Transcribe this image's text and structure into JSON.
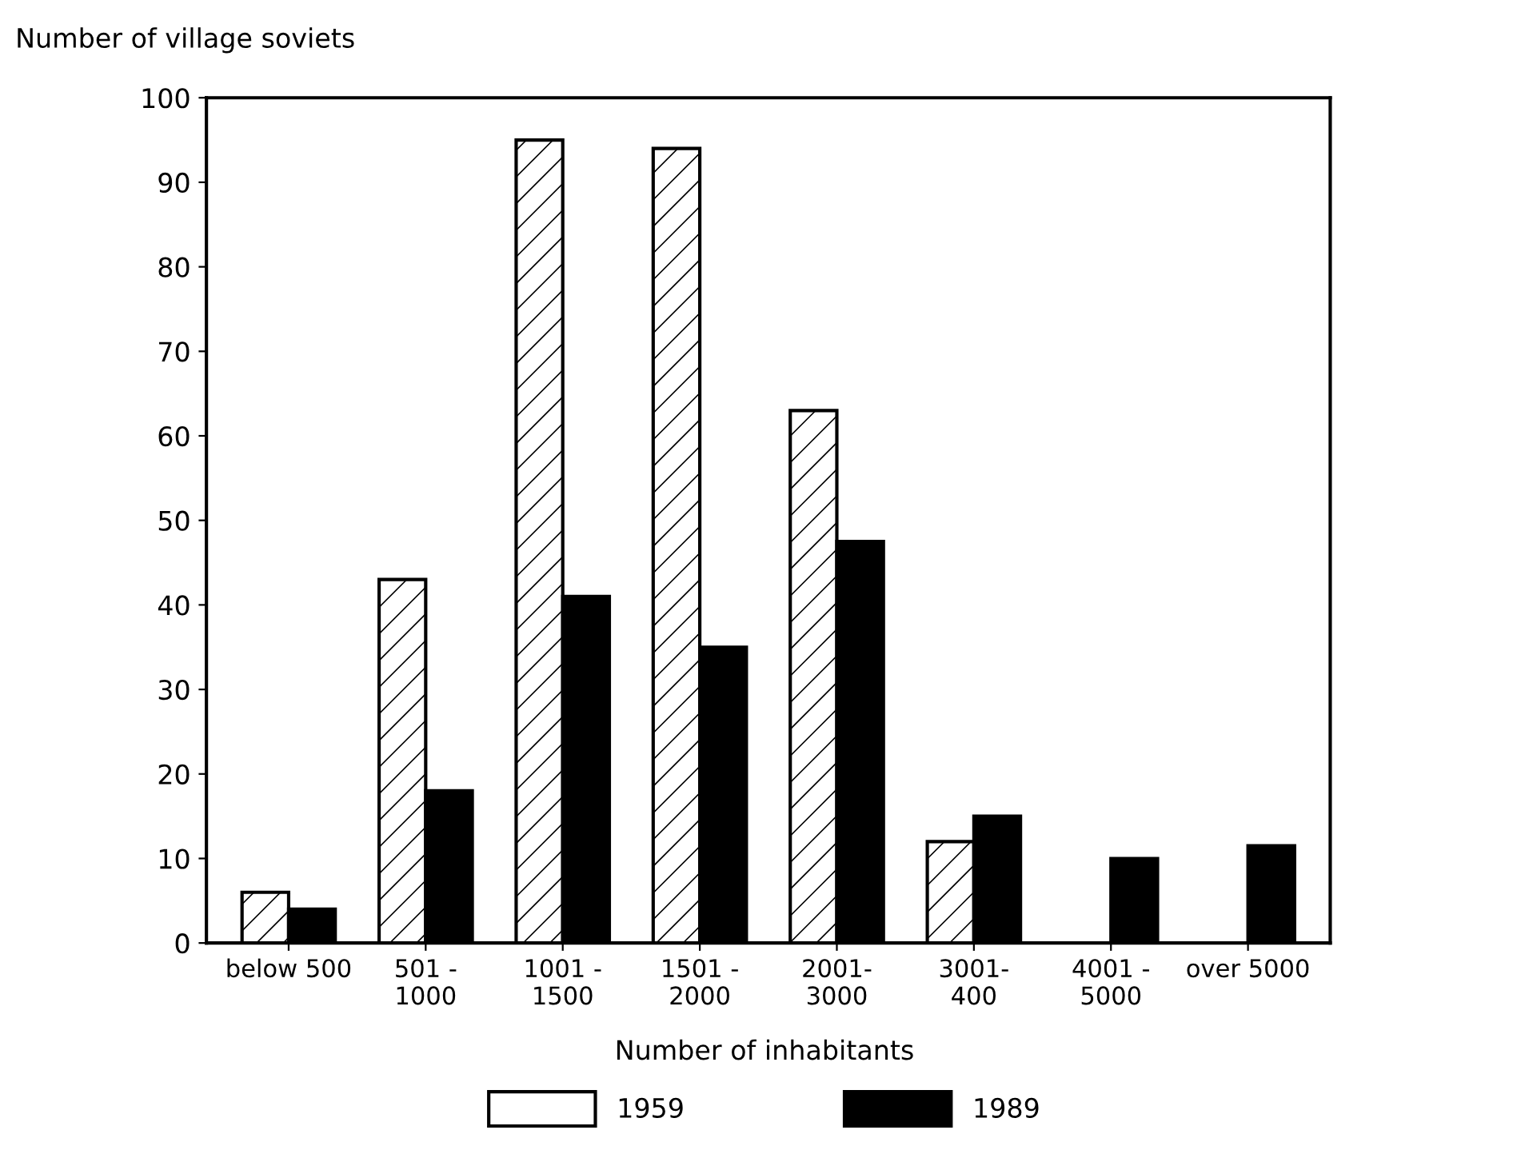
{
  "chart_data": {
    "type": "bar",
    "ylabel": "Number of village soviets",
    "xlabel": "Number of inhabitants",
    "categories": [
      "below 500",
      "501 -\n1000",
      "1001 -\n1500",
      "1501 -\n2000",
      "2001-\n3000",
      "3001-\n400",
      "4001 -\n5000",
      "over 5000"
    ],
    "series": [
      {
        "name": "1959",
        "color": "#ffffff",
        "values": [
          6,
          43,
          95,
          94,
          63,
          12,
          null,
          null
        ]
      },
      {
        "name": "1989",
        "color": "#000000",
        "values": [
          4,
          18,
          41,
          35,
          47.5,
          15,
          10,
          11.5
        ]
      }
    ],
    "ylim": [
      0,
      100
    ],
    "yticks": [
      0,
      10,
      20,
      30,
      40,
      50,
      60,
      70,
      80,
      90,
      100
    ],
    "grid": false,
    "legend": "bottom"
  }
}
